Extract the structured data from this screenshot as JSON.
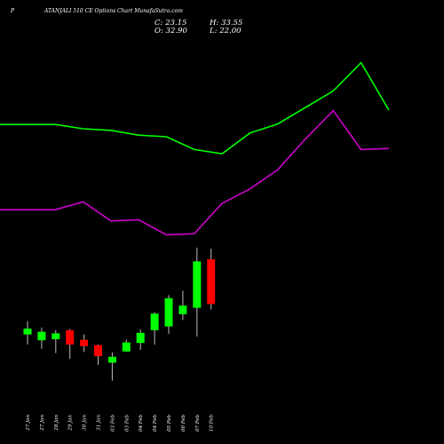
{
  "header": {
    "prefix": "P",
    "title": "ATANJALI 510  CE Options  Chart MunafaSutra.com"
  },
  "ohlc": {
    "c_label": "C: 23.15",
    "h_label": "H: 33.55",
    "o_label": "O: 32.90",
    "l_label": "L: 22.00"
  },
  "colors": {
    "background": "#000000",
    "up": "#00ff00",
    "down": "#ff0000",
    "band_upper": "#00ff00",
    "band_lower": "#cc00cc",
    "text": "#ffffff"
  },
  "chart_data": {
    "type": "candlestick",
    "categories": [
      "27 Jan",
      "27 Jan",
      "28 Jan",
      "29 Jan",
      "30 Jan",
      "31 Jan",
      "03 Feb",
      "03 Feb",
      "04 Feb",
      "04 Feb",
      "05 Feb",
      "06 Feb",
      "07 Feb",
      "10 Feb"
    ],
    "candles": [
      {
        "open": 13.9,
        "high": 16.4,
        "low": 12.0,
        "close": 15.0,
        "dir": "up"
      },
      {
        "open": 12.8,
        "high": 15.2,
        "low": 11.2,
        "close": 14.4,
        "dir": "up"
      },
      {
        "open": 13.0,
        "high": 14.7,
        "low": 10.4,
        "close": 14.1,
        "dir": "up"
      },
      {
        "open": 14.7,
        "high": 14.9,
        "low": 9.3,
        "close": 12.0,
        "dir": "down"
      },
      {
        "open": 12.9,
        "high": 13.9,
        "low": 10.6,
        "close": 11.7,
        "dir": "down"
      },
      {
        "open": 11.9,
        "high": 12.0,
        "low": 8.2,
        "close": 9.8,
        "dir": "down"
      },
      {
        "open": 8.6,
        "high": 10.5,
        "low": 5.2,
        "close": 9.7,
        "dir": "up"
      },
      {
        "open": 10.7,
        "high": 12.9,
        "low": 10.6,
        "close": 12.4,
        "dir": "up"
      },
      {
        "open": 12.3,
        "high": 14.8,
        "low": 11.0,
        "close": 14.2,
        "dir": "up"
      },
      {
        "open": 14.7,
        "high": 18.1,
        "low": 12.0,
        "close": 17.8,
        "dir": "up"
      },
      {
        "open": 15.4,
        "high": 21.3,
        "low": 14.0,
        "close": 20.7,
        "dir": "up"
      },
      {
        "open": 17.7,
        "high": 22.1,
        "low": 16.6,
        "close": 19.3,
        "dir": "up"
      },
      {
        "open": 18.9,
        "high": 30.2,
        "low": 13.5,
        "close": 27.6,
        "dir": "up"
      },
      {
        "open": 28.0,
        "high": 30.0,
        "low": 18.6,
        "close": 19.6,
        "dir": "down"
      }
    ],
    "band_upper": [
      53.3,
      53.3,
      52.5,
      52.2,
      51.3,
      51.0,
      48.6,
      47.8,
      51.7,
      53.4,
      56.5,
      59.6,
      64.9,
      56.0
    ],
    "band_lower": [
      37.3,
      37.3,
      38.8,
      35.2,
      35.4,
      32.6,
      32.8,
      38.5,
      41.2,
      44.8,
      50.6,
      55.9,
      48.6,
      48.8
    ],
    "ylim": [
      0,
      70
    ],
    "xlabel": "",
    "ylabel": ""
  }
}
